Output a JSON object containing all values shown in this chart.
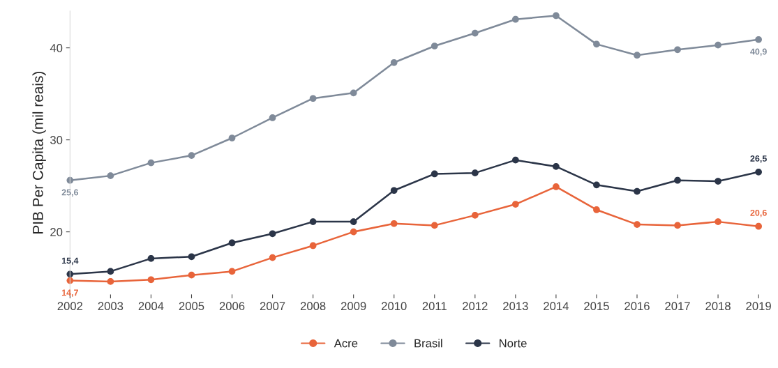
{
  "chart_data": {
    "type": "line",
    "ylabel": "PIB Per Capita (mil reais)",
    "x": [
      2002,
      2003,
      2004,
      2005,
      2006,
      2007,
      2008,
      2009,
      2010,
      2011,
      2012,
      2013,
      2014,
      2015,
      2016,
      2017,
      2018,
      2019
    ],
    "xticks": [
      2002,
      2003,
      2004,
      2005,
      2006,
      2007,
      2008,
      2009,
      2010,
      2011,
      2012,
      2013,
      2014,
      2015,
      2016,
      2017,
      2018,
      2019
    ],
    "xlim": [
      2002,
      2019
    ],
    "ylim": [
      13.2,
      44.0
    ],
    "yticks": [
      20,
      30,
      40
    ],
    "marker": "circle",
    "line_style": "solid",
    "grid": false,
    "legend": "bottom",
    "series": [
      {
        "name": "Acre",
        "color": "#e8643a",
        "values": [
          14.7,
          14.6,
          14.8,
          15.3,
          15.7,
          17.2,
          18.5,
          20.0,
          20.9,
          20.7,
          21.8,
          23.0,
          24.9,
          22.4,
          20.8,
          20.7,
          21.1,
          20.6
        ],
        "value_labels": [
          "14,7",
          null,
          null,
          null,
          null,
          null,
          null,
          null,
          null,
          null,
          null,
          null,
          null,
          null,
          null,
          null,
          null,
          "20,6"
        ]
      },
      {
        "name": "Brasil",
        "color": "#7f8a99",
        "values": [
          25.6,
          26.1,
          27.5,
          28.3,
          30.2,
          32.4,
          34.5,
          35.1,
          38.4,
          40.2,
          41.6,
          43.1,
          43.5,
          40.4,
          39.2,
          39.8,
          40.3,
          40.9
        ],
        "value_labels": [
          "25,6",
          null,
          null,
          null,
          null,
          null,
          null,
          null,
          null,
          null,
          null,
          null,
          null,
          null,
          null,
          null,
          null,
          "40,9"
        ]
      },
      {
        "name": "Norte",
        "color": "#2b3548",
        "values": [
          15.4,
          15.7,
          17.1,
          17.3,
          18.8,
          19.8,
          21.1,
          21.1,
          24.5,
          26.3,
          26.4,
          27.8,
          27.1,
          25.1,
          24.4,
          25.6,
          25.5,
          26.5
        ],
        "value_labels": [
          "15,4",
          null,
          null,
          null,
          null,
          null,
          null,
          null,
          null,
          null,
          null,
          null,
          null,
          null,
          null,
          null,
          null,
          "26,5"
        ]
      }
    ]
  }
}
